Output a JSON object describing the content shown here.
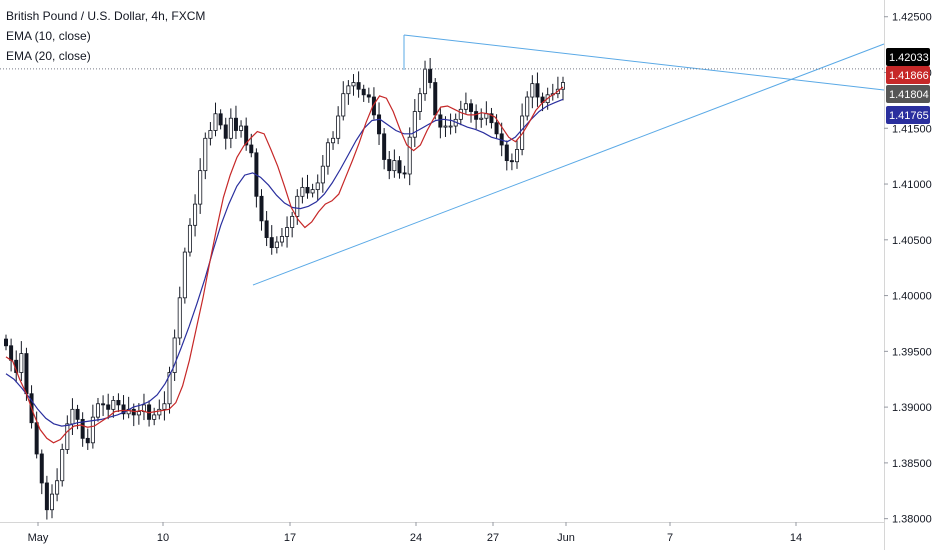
{
  "chart_data": {
    "type": "candlestick",
    "title": "British Pound / U.S. Dollar, 4h, FXCM",
    "indicators": [
      {
        "name": "EMA (10, close)",
        "color": "#c62828"
      },
      {
        "name": "EMA (20, close)",
        "color": "#2a2f9e"
      }
    ],
    "x_tick_labels": [
      "May",
      "10",
      "17",
      "24",
      "27",
      "Jun",
      "7",
      "14"
    ],
    "y_tick_labels": [
      "1.42500",
      "1.42000",
      "1.41500",
      "1.41000",
      "1.40500",
      "1.40000",
      "1.39500",
      "1.39000",
      "1.38500",
      "1.38000"
    ],
    "ylim": [
      1.3797,
      1.4265
    ],
    "price_labels": [
      {
        "text": "1.42033",
        "value": 1.42033,
        "bg": "#000000",
        "fg": "#ffffff"
      },
      {
        "text": "1.41866",
        "value": 1.41866,
        "bg": "#c62828",
        "fg": "#ffffff"
      },
      {
        "text": "1.41804",
        "value": 1.41804,
        "bg": "#555555",
        "fg": "#ffffff"
      },
      {
        "text": "1.41765",
        "value": 1.41765,
        "bg": "#2a2f9e",
        "fg": "#ffffff"
      }
    ],
    "close_series": [
      1.3955,
      1.3942,
      1.3931,
      1.3948,
      1.3912,
      1.3886,
      1.3858,
      1.3832,
      1.3808,
      1.3822,
      1.3834,
      1.3862,
      1.3885,
      1.3898,
      1.3889,
      1.3872,
      1.3868,
      1.3891,
      1.3903,
      1.3902,
      1.3898,
      1.3906,
      1.3902,
      1.3894,
      1.3898,
      1.3893,
      1.3896,
      1.3902,
      1.3889,
      1.3893,
      1.3898,
      1.3903,
      1.3931,
      1.3962,
      1.3998,
      1.4039,
      1.4063,
      1.4082,
      1.4112,
      1.4141,
      1.4148,
      1.4163,
      1.4153,
      1.4141,
      1.4159,
      1.4148,
      1.4152,
      1.4135,
      1.4128,
      1.4089,
      1.4067,
      1.4052,
      1.4043,
      1.4048,
      1.4053,
      1.4061,
      1.4071,
      1.4089,
      1.4097,
      1.4092,
      1.4095,
      1.4101,
      1.4116,
      1.4137,
      1.4141,
      1.4161,
      1.4181,
      1.4188,
      1.4191,
      1.4185,
      1.418,
      1.4178,
      1.4162,
      1.4145,
      1.4122,
      1.4112,
      1.4121,
      1.411,
      1.4109,
      1.4142,
      1.4165,
      1.4181,
      1.4203,
      1.4191,
      1.4162,
      1.4151,
      1.4152,
      1.4152,
      1.4158,
      1.4167,
      1.4172,
      1.4165,
      1.4158,
      1.4159,
      1.4163,
      1.4155,
      1.4145,
      1.4135,
      1.4121,
      1.412,
      1.4131,
      1.4161,
      1.4178,
      1.419,
      1.4178,
      1.4173,
      1.418,
      1.4181,
      1.4185,
      1.4191
    ],
    "ema10_series": [
      1.3945,
      1.3941,
      1.3925,
      1.3912,
      1.3895,
      1.388,
      1.3872,
      1.3868,
      1.3871,
      1.3878,
      1.3883,
      1.3884,
      1.3882,
      1.3883,
      1.3887,
      1.3891,
      1.3896,
      1.3897,
      1.3897,
      1.3896,
      1.3897,
      1.3895,
      1.3896,
      1.3897,
      1.3898,
      1.3904,
      1.3919,
      1.3942,
      1.397,
      1.3998,
      1.403,
      1.406,
      1.4088,
      1.4108,
      1.4124,
      1.4134,
      1.4141,
      1.4147,
      1.4145,
      1.4131,
      1.4116,
      1.4098,
      1.4079,
      1.4068,
      1.4061,
      1.4066,
      1.4075,
      1.4082,
      1.4085,
      1.4091,
      1.4106,
      1.4121,
      1.4137,
      1.4155,
      1.417,
      1.4179,
      1.4177,
      1.4165,
      1.4149,
      1.4135,
      1.413,
      1.4135,
      1.4148,
      1.4159,
      1.4169,
      1.417,
      1.4167,
      1.4164,
      1.4162,
      1.4162,
      1.4164,
      1.4163,
      1.416,
      1.4151,
      1.4142,
      1.4138,
      1.4145,
      1.4155,
      1.4166,
      1.4173,
      1.4178,
      1.4182,
      1.4187
    ],
    "ema20_series": [
      1.393,
      1.3925,
      1.3917,
      1.3908,
      1.3898,
      1.389,
      1.3885,
      1.3883,
      1.3884,
      1.3886,
      1.3887,
      1.3888,
      1.3889,
      1.3891,
      1.3893,
      1.3896,
      1.39,
      1.3902,
      1.3905,
      1.3911,
      1.3921,
      1.3935,
      1.3953,
      1.3972,
      1.3993,
      1.4015,
      1.404,
      1.4063,
      1.4082,
      1.4098,
      1.4108,
      1.411,
      1.4106,
      1.4099,
      1.409,
      1.4083,
      1.4079,
      1.4078,
      1.408,
      1.4084,
      1.4091,
      1.4101,
      1.4113,
      1.4126,
      1.4139,
      1.415,
      1.4157,
      1.4158,
      1.4153,
      1.4148,
      1.4145,
      1.4145,
      1.4149,
      1.4153,
      1.4157,
      1.4158,
      1.4157,
      1.4154,
      1.4151,
      1.4149,
      1.4146,
      1.4142,
      1.414,
      1.4138,
      1.4142,
      1.415,
      1.4158,
      1.4165,
      1.417,
      1.4173,
      1.4176
    ]
  }
}
